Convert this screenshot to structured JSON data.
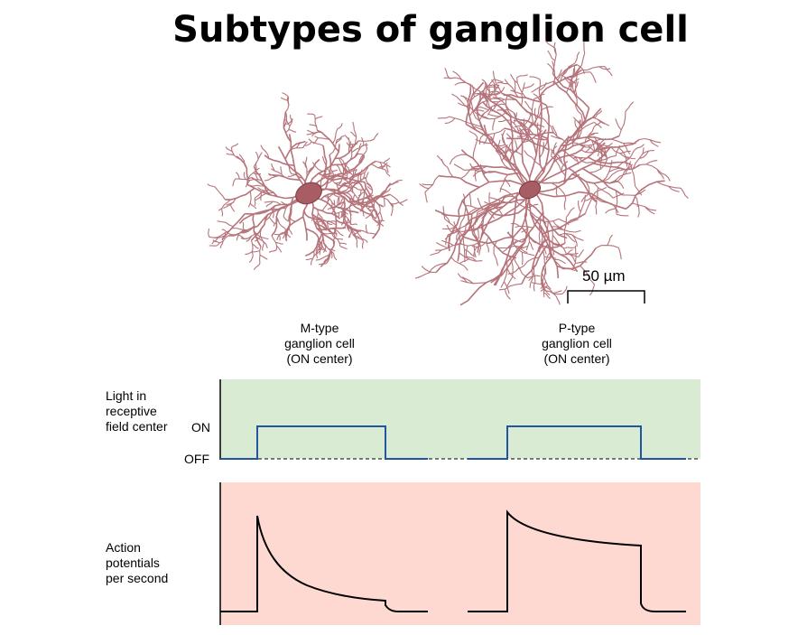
{
  "title": "Subtypes of ganglion cell",
  "scale_bar": "50 µm",
  "columns": [
    {
      "lines": [
        "M-type",
        "ganglion cell",
        "(ON center)"
      ]
    },
    {
      "lines": [
        "P-type",
        "ganglion cell",
        "(ON center)"
      ]
    }
  ],
  "rows": {
    "light": [
      "Light in",
      "receptive",
      "field center"
    ],
    "action": [
      "Action",
      "potentials",
      "per second"
    ]
  },
  "levels": {
    "on": "ON",
    "off": "OFF"
  },
  "colors": {
    "light_panel": "#d9ecd3",
    "action_panel": "#fdd9d1",
    "stimulus_line": "#2255a0",
    "neuron": "#b5737a",
    "soma": "#a85c64"
  }
}
